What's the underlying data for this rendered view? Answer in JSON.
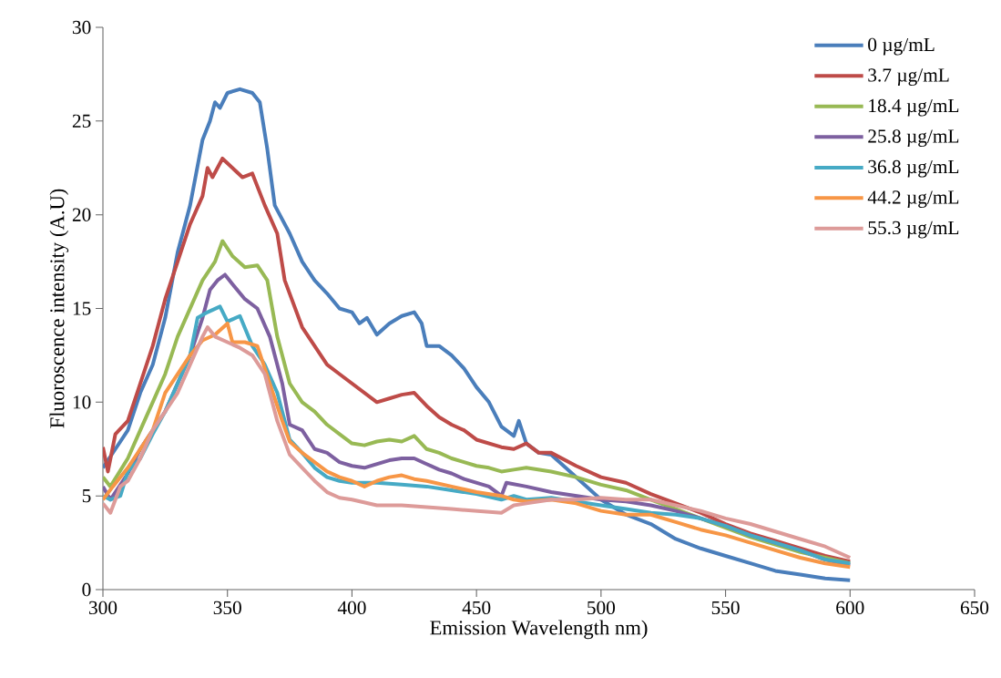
{
  "chart_data": {
    "type": "line",
    "xlabel": "Emission Wavelength nm)",
    "ylabel": "Fluoroscence intensity (A.U)",
    "xlim": [
      300,
      650
    ],
    "xticks": [
      300,
      350,
      400,
      450,
      500,
      550,
      600,
      650
    ],
    "ylim": [
      0,
      30
    ],
    "yticks": [
      0,
      5,
      10,
      15,
      20,
      25,
      30
    ],
    "legend": "top right",
    "grid": false,
    "series": [
      {
        "name": "0 µg/mL",
        "color": "#4a7ebb",
        "x": [
          300,
          305,
          310,
          315,
          320,
          325,
          330,
          335,
          340,
          343,
          345,
          347,
          350,
          355,
          360,
          363,
          366,
          369,
          375,
          380,
          385,
          390,
          395,
          400,
          403,
          406,
          410,
          415,
          420,
          425,
          428,
          430,
          435,
          440,
          445,
          450,
          455,
          460,
          465,
          467,
          470,
          475,
          480,
          490,
          500,
          510,
          520,
          530,
          540,
          550,
          560,
          570,
          580,
          590,
          600
        ],
        "values": [
          6.5,
          7.5,
          8.5,
          10.5,
          12,
          14.5,
          18,
          20.5,
          24,
          25,
          26,
          25.7,
          26.5,
          26.7,
          26.5,
          26,
          23.5,
          20.5,
          19,
          17.5,
          16.5,
          15.8,
          15,
          14.8,
          14.2,
          14.5,
          13.6,
          14.2,
          14.6,
          14.8,
          14.2,
          13,
          13,
          12.5,
          11.8,
          10.8,
          10,
          8.7,
          8.2,
          9,
          7.8,
          7.3,
          7.2,
          6,
          4.8,
          4,
          3.5,
          2.7,
          2.2,
          1.8,
          1.4,
          1,
          0.8,
          0.6,
          0.5
        ]
      },
      {
        "name": "3.7 µg/mL",
        "color": "#be4b48",
        "x": [
          300,
          302,
          305,
          310,
          315,
          320,
          325,
          330,
          335,
          340,
          342,
          344,
          348,
          352,
          356,
          360,
          365,
          370,
          373,
          380,
          385,
          390,
          395,
          400,
          405,
          410,
          415,
          420,
          425,
          430,
          435,
          440,
          445,
          450,
          455,
          460,
          465,
          470,
          475,
          480,
          490,
          500,
          510,
          520,
          530,
          540,
          550,
          560,
          570,
          580,
          590,
          600
        ],
        "values": [
          7.6,
          6.3,
          8.3,
          9,
          11,
          13,
          15.5,
          17.5,
          19.5,
          21,
          22.5,
          22,
          23,
          22.5,
          22,
          22.2,
          20.5,
          19,
          16.5,
          14,
          13,
          12,
          11.5,
          11,
          10.5,
          10,
          10.2,
          10.4,
          10.5,
          9.8,
          9.2,
          8.8,
          8.5,
          8,
          7.8,
          7.6,
          7.5,
          7.8,
          7.3,
          7.3,
          6.6,
          6,
          5.7,
          5.1,
          4.6,
          4.1,
          3.5,
          3,
          2.6,
          2.2,
          1.8,
          1.5
        ]
      },
      {
        "name": "18.4 µg/mL",
        "color": "#98b954",
        "x": [
          300,
          303,
          310,
          315,
          320,
          325,
          330,
          335,
          340,
          345,
          348,
          352,
          357,
          362,
          366,
          370,
          375,
          380,
          385,
          390,
          395,
          400,
          405,
          410,
          415,
          420,
          425,
          430,
          435,
          440,
          445,
          450,
          455,
          460,
          465,
          470,
          480,
          490,
          500,
          510,
          520,
          530,
          540,
          550,
          560,
          570,
          580,
          590,
          600
        ],
        "values": [
          6,
          5.5,
          7,
          8.5,
          10,
          11.5,
          13.5,
          15,
          16.5,
          17.5,
          18.6,
          17.8,
          17.2,
          17.3,
          16.5,
          13.5,
          11,
          10,
          9.5,
          8.8,
          8.3,
          7.8,
          7.7,
          7.9,
          8,
          7.9,
          8.2,
          7.5,
          7.3,
          7,
          6.8,
          6.6,
          6.5,
          6.3,
          6.4,
          6.5,
          6.3,
          6,
          5.6,
          5.3,
          4.8,
          4.3,
          3.8,
          3.3,
          2.8,
          2.4,
          2,
          1.7,
          1.4
        ]
      },
      {
        "name": "25.8 µg/mL",
        "color": "#7d60a0",
        "x": [
          300,
          303,
          310,
          315,
          320,
          325,
          330,
          335,
          340,
          343,
          346,
          349,
          352,
          357,
          362,
          367,
          372,
          375,
          380,
          385,
          390,
          395,
          400,
          405,
          410,
          415,
          420,
          425,
          430,
          435,
          440,
          445,
          450,
          455,
          460,
          462,
          470,
          480,
          490,
          500,
          510,
          520,
          530,
          540,
          550,
          560,
          570,
          580,
          590,
          600
        ],
        "values": [
          5.5,
          4.8,
          6.2,
          7.5,
          8.5,
          9.5,
          11,
          12.5,
          14.5,
          16,
          16.5,
          16.8,
          16.3,
          15.5,
          15,
          13.5,
          11,
          8.8,
          8.5,
          7.5,
          7.3,
          6.8,
          6.6,
          6.5,
          6.7,
          6.9,
          7,
          7,
          6.7,
          6.4,
          6.2,
          5.9,
          5.7,
          5.5,
          5,
          5.7,
          5.5,
          5.2,
          5,
          4.8,
          4.7,
          4.5,
          4.2,
          3.8,
          3.4,
          2.9,
          2.5,
          2.1,
          1.6,
          1.3
        ]
      },
      {
        "name": "36.8 µg/mL",
        "color": "#46aac5",
        "x": [
          300,
          303,
          307,
          310,
          315,
          320,
          325,
          330,
          335,
          338,
          342,
          347,
          350,
          355,
          360,
          365,
          370,
          375,
          380,
          385,
          390,
          395,
          400,
          410,
          420,
          430,
          440,
          450,
          460,
          465,
          470,
          480,
          490,
          500,
          510,
          520,
          530,
          540,
          550,
          560,
          570,
          580,
          590,
          600
        ],
        "values": [
          5,
          4.8,
          5,
          6.3,
          7,
          8.3,
          9.5,
          11,
          12.5,
          14.5,
          14.8,
          15.1,
          14.3,
          14.6,
          13,
          12,
          10.5,
          8,
          7.3,
          6.5,
          6,
          5.8,
          5.7,
          5.7,
          5.6,
          5.5,
          5.3,
          5.1,
          4.8,
          5,
          4.8,
          4.9,
          4.7,
          4.5,
          4.3,
          4.1,
          4,
          3.8,
          3.4,
          2.9,
          2.5,
          2.1,
          1.6,
          1.4
        ]
      },
      {
        "name": "44.2 µg/mL",
        "color": "#f79646",
        "x": [
          300,
          304,
          310,
          315,
          320,
          325,
          330,
          335,
          340,
          345,
          350,
          352,
          357,
          362,
          367,
          372,
          375,
          380,
          385,
          390,
          395,
          400,
          405,
          410,
          415,
          420,
          425,
          430,
          440,
          450,
          460,
          465,
          470,
          480,
          490,
          500,
          510,
          520,
          530,
          540,
          550,
          560,
          570,
          580,
          590,
          600
        ],
        "values": [
          4.8,
          5.5,
          6.5,
          7.5,
          8.5,
          10.5,
          11.5,
          12.5,
          13.3,
          13.6,
          14.2,
          13.2,
          13.2,
          13,
          11,
          9,
          7.9,
          7.3,
          6.8,
          6.3,
          6,
          5.8,
          5.5,
          5.8,
          6,
          6.1,
          5.9,
          5.8,
          5.5,
          5.2,
          5,
          4.8,
          4.7,
          4.8,
          4.6,
          4.2,
          4,
          4,
          3.6,
          3.2,
          2.9,
          2.5,
          2.1,
          1.7,
          1.4,
          1.2
        ]
      },
      {
        "name": "55.3 µg/mL",
        "color": "#dd9b99",
        "x": [
          300,
          303,
          307,
          310,
          315,
          320,
          325,
          330,
          335,
          340,
          342,
          345,
          350,
          355,
          360,
          365,
          370,
          375,
          380,
          385,
          390,
          395,
          400,
          410,
          420,
          430,
          440,
          450,
          460,
          465,
          470,
          480,
          490,
          500,
          510,
          520,
          530,
          540,
          550,
          560,
          570,
          580,
          590,
          600
        ],
        "values": [
          4.6,
          4.1,
          5.5,
          5.8,
          7,
          8.5,
          9.5,
          10.5,
          12,
          13.5,
          14,
          13.5,
          13.2,
          12.9,
          12.5,
          11.5,
          9,
          7.2,
          6.5,
          5.8,
          5.2,
          4.9,
          4.8,
          4.5,
          4.5,
          4.4,
          4.3,
          4.2,
          4.1,
          4.5,
          4.6,
          4.8,
          4.8,
          4.9,
          4.8,
          4.8,
          4.5,
          4.2,
          3.8,
          3.5,
          3.1,
          2.7,
          2.3,
          1.7
        ]
      }
    ]
  }
}
